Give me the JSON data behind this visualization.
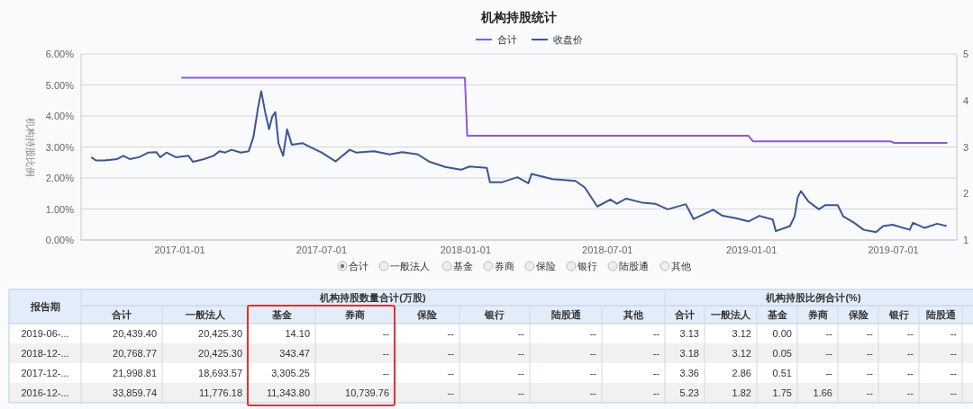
{
  "chart_data": [
    {
      "type": "line",
      "title": "机构持股统计",
      "ylabel": "机构持股比例",
      "legend": "top",
      "grid": "y",
      "xlim": [
        "2016-08-28",
        "2019-09-20"
      ],
      "xticks": [
        "2017-01-01",
        "2017-07-01",
        "2018-01-01",
        "2018-07-01",
        "2019-01-01",
        "2019-07-01"
      ],
      "ylim": [
        0,
        6
      ],
      "yticks": [
        {
          "value": 0,
          "label": "0.00%"
        },
        {
          "value": 1,
          "label": "1.00%"
        },
        {
          "value": 2,
          "label": "2.00%"
        },
        {
          "value": 3,
          "label": "3.00%"
        },
        {
          "value": 4,
          "label": "4.00%"
        },
        {
          "value": 5,
          "label": "5.00%"
        },
        {
          "value": 6,
          "label": "6.00%"
        }
      ],
      "y2lim": [
        1,
        5
      ],
      "y2ticks": [
        1,
        2,
        3,
        4,
        5
      ],
      "annotations": [
        "合计",
        "一般法人",
        "基金",
        "券商",
        "保险",
        "银行",
        "陆股通",
        "其他"
      ],
      "series": [
        {
          "name": "合计",
          "color": "#8a5cd8",
          "x": [
            "2017-01-03",
            "2017-12-31",
            "2018-01-03",
            "2018-12-28",
            "2019-01-03",
            "2019-06-28",
            "2019-07-02",
            "2019-09-08"
          ],
          "values": [
            5.23,
            5.23,
            3.36,
            3.36,
            3.18,
            3.18,
            3.13,
            3.13
          ]
        },
        {
          "name": "收盘价",
          "color": "#3c5499",
          "axis": "y2",
          "x": [
            "2016-09-10",
            "2016-09-16",
            "2016-09-27",
            "2016-10-13",
            "2016-10-21",
            "2016-10-29",
            "2016-11-10",
            "2016-11-22",
            "2016-12-02",
            "2016-12-07",
            "2016-12-15",
            "2016-12-27",
            "2017-01-12",
            "2017-01-18",
            "2017-02-01",
            "2017-02-13",
            "2017-02-21",
            "2017-02-28",
            "2017-03-08",
            "2017-03-20",
            "2017-03-30",
            "2017-04-05",
            "2017-04-11",
            "2017-04-15",
            "2017-04-20",
            "2017-04-25",
            "2017-04-29",
            "2017-05-03",
            "2017-05-07",
            "2017-05-13",
            "2017-05-18",
            "2017-05-24",
            "2017-06-07",
            "2017-06-19",
            "2017-07-01",
            "2017-07-19",
            "2017-08-06",
            "2017-08-14",
            "2017-09-06",
            "2017-09-26",
            "2017-10-12",
            "2017-11-01",
            "2017-11-16",
            "2017-12-06",
            "2017-12-26",
            "2018-01-06",
            "2018-01-28",
            "2018-02-01",
            "2018-02-16",
            "2018-03-08",
            "2018-03-22",
            "2018-03-26",
            "2018-04-22",
            "2018-05-21",
            "2018-06-02",
            "2018-06-18",
            "2018-07-05",
            "2018-07-13",
            "2018-07-25",
            "2018-08-15",
            "2018-08-31",
            "2018-09-16",
            "2018-10-09",
            "2018-10-19",
            "2018-11-13",
            "2018-11-25",
            "2018-12-12",
            "2018-12-28",
            "2019-01-11",
            "2019-01-28",
            "2019-02-01",
            "2019-02-19",
            "2019-02-25",
            "2019-03-01",
            "2019-03-05",
            "2019-03-15",
            "2019-03-28",
            "2019-04-05",
            "2019-04-21",
            "2019-04-28",
            "2019-05-12",
            "2019-05-24",
            "2019-06-09",
            "2019-06-18",
            "2019-06-30",
            "2019-07-22",
            "2019-07-26",
            "2019-08-10",
            "2019-08-26",
            "2019-09-07"
          ],
          "values": [
            2.78,
            2.71,
            2.71,
            2.74,
            2.81,
            2.74,
            2.78,
            2.88,
            2.89,
            2.78,
            2.88,
            2.78,
            2.81,
            2.68,
            2.74,
            2.81,
            2.91,
            2.88,
            2.94,
            2.88,
            2.91,
            3.21,
            3.85,
            4.2,
            3.75,
            3.38,
            3.65,
            3.75,
            3.08,
            2.81,
            3.38,
            3.05,
            3.08,
            2.98,
            2.88,
            2.69,
            2.94,
            2.88,
            2.91,
            2.84,
            2.89,
            2.84,
            2.68,
            2.57,
            2.51,
            2.58,
            2.55,
            2.24,
            2.24,
            2.35,
            2.22,
            2.42,
            2.31,
            2.27,
            2.13,
            1.72,
            1.87,
            1.78,
            1.89,
            1.8,
            1.78,
            1.66,
            1.77,
            1.45,
            1.65,
            1.52,
            1.47,
            1.4,
            1.52,
            1.44,
            1.19,
            1.3,
            1.51,
            1.92,
            2.05,
            1.82,
            1.66,
            1.75,
            1.75,
            1.51,
            1.37,
            1.22,
            1.17,
            1.3,
            1.33,
            1.22,
            1.37,
            1.26,
            1.35,
            1.3
          ]
        }
      ]
    },
    {
      "type": "other",
      "ylabel": "报告期",
      "annotations": [
        "机构持股数量合计(万股)",
        "机构持股比例合计(%)"
      ],
      "categories": [
        "合计",
        "一般法人",
        "基金",
        "券商",
        "保险",
        "银行",
        "陆股通",
        "其他",
        "合计",
        "一般法人",
        "基金",
        "券商",
        "保险",
        "银行",
        "陆股通"
      ],
      "y_categories": [
        "2019-06-...",
        "2018-12-...",
        "2017-12-...",
        "2016-12-..."
      ],
      "cell_labels": [
        [
          "20,439.40",
          "20,425.30",
          "14.10",
          "--",
          "--",
          "--",
          "--",
          "--",
          "3.13",
          "3.12",
          "0.00",
          "--",
          "--",
          "--",
          "--"
        ],
        [
          "20,768.77",
          "20,425.30",
          "343.47",
          "--",
          "--",
          "--",
          "--",
          "--",
          "3.18",
          "3.12",
          "0.05",
          "--",
          "--",
          "--",
          "--"
        ],
        [
          "21,998.81",
          "18,693.57",
          "3,305.25",
          "--",
          "--",
          "--",
          "--",
          "--",
          "3.36",
          "2.86",
          "0.51",
          "--",
          "--",
          "--",
          "--"
        ],
        [
          "33,859.74",
          "11,776.18",
          "11,343.80",
          "10,739.76",
          "--",
          "--",
          "--",
          "--",
          "5.23",
          "1.82",
          "1.75",
          "1.66",
          "--",
          "--",
          "--"
        ]
      ]
    }
  ]
}
